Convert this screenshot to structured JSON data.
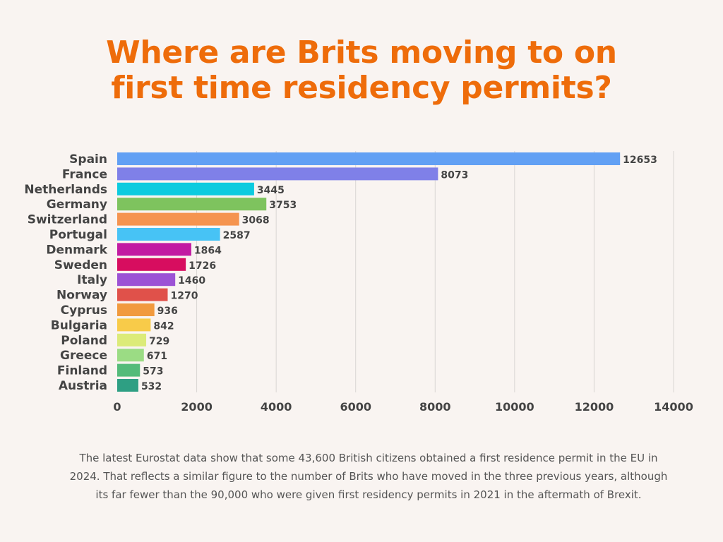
{
  "title": {
    "line1": "Where are Brits moving to on",
    "line2": "first time residency permits?"
  },
  "caption": "The latest Eurostat data show that some 43,600 British citizens obtained a first residence permit in the EU in 2024. That reflects a similar figure to the number of Brits who have moved in the three previous years, although its far fewer than the 90,000 who were given first residency permits in 2021 in the aftermath of Brexit.",
  "colors": {
    "title": "#ee6c0a",
    "label": "#444444",
    "caption": "#555555",
    "grid": "#d9d6d3",
    "background": "#f9f4f1"
  },
  "chart_data": {
    "type": "bar",
    "orientation": "horizontal",
    "title": "",
    "xlabel": "",
    "ylabel": "",
    "xlim": [
      0,
      14000
    ],
    "xticks": [
      0,
      2000,
      4000,
      6000,
      8000,
      10000,
      12000,
      14000
    ],
    "grid": "vertical",
    "legend": "none",
    "data_labels": true,
    "categories": [
      "Spain",
      "France",
      "Netherlands",
      "Germany",
      "Switzerland",
      "Portugal",
      "Denmark",
      "Sweden",
      "Italy",
      "Norway",
      "Cyprus",
      "Bulgaria",
      "Poland",
      "Greece",
      "Finland",
      "Austria"
    ],
    "values": [
      12653,
      8073,
      3445,
      3753,
      3068,
      2587,
      1864,
      1726,
      1460,
      1270,
      936,
      842,
      729,
      671,
      573,
      532
    ],
    "bar_colors": [
      "#62a0f4",
      "#7f80e8",
      "#0ccbdf",
      "#7ec35e",
      "#f5944f",
      "#47c3f5",
      "#c21ba2",
      "#d70d5f",
      "#9c52d5",
      "#e0514a",
      "#f19a3e",
      "#f8cb49",
      "#dceb79",
      "#9bdc84",
      "#54bb7a",
      "#2e9f83"
    ]
  }
}
